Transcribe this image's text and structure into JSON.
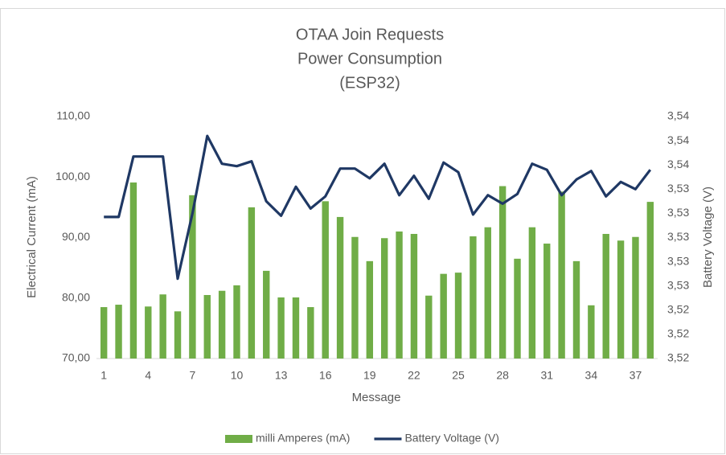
{
  "chart_data": {
    "type": "bar_line",
    "title": [
      "OTAA Join Requests",
      "Power Consumption",
      "(ESP32)"
    ],
    "x_label": "Message",
    "y_label": "Electrical Current (mA)",
    "y2_label": "Battery Voltage (V)",
    "categories": [
      "1",
      null,
      null,
      "4",
      null,
      null,
      "7",
      null,
      null,
      "10",
      null,
      null,
      "13",
      null,
      null,
      "16",
      null,
      null,
      "19",
      null,
      null,
      "22",
      null,
      null,
      "25",
      null,
      null,
      "28",
      null,
      null,
      "31",
      null,
      null,
      "34",
      null,
      null,
      "37",
      null
    ],
    "series": [
      {
        "name": "milli Amperes (mA)",
        "type": "bar",
        "color": "#70ad47",
        "values": [
          78.5,
          78.9,
          99.1,
          78.6,
          80.6,
          77.8,
          97.0,
          80.5,
          81.2,
          82.1,
          95.0,
          84.5,
          80.1,
          80.1,
          78.5,
          96.0,
          93.4,
          90.1,
          86.1,
          89.9,
          91.0,
          90.6,
          80.4,
          84.0,
          84.2,
          90.2,
          91.7,
          98.5,
          86.5,
          91.7,
          89.0,
          97.6,
          86.1,
          78.8,
          90.6,
          89.5,
          90.1,
          95.9
        ]
      },
      {
        "name": "Battery Voltage (V)",
        "type": "line",
        "axis": "y2",
        "color": "#1f3864",
        "values": [
          3.5317,
          3.5317,
          3.5367,
          3.5367,
          3.5367,
          3.5266,
          3.532,
          3.5384,
          3.5361,
          3.5359,
          3.5363,
          3.533,
          3.5318,
          3.5342,
          3.5324,
          3.5334,
          3.5357,
          3.5357,
          3.5349,
          3.5361,
          3.5335,
          3.5351,
          3.5332,
          3.5362,
          3.5354,
          3.5319,
          3.5335,
          3.5328,
          3.5336,
          3.5361,
          3.5356,
          3.5335,
          3.5348,
          3.5355,
          3.5334,
          3.5346,
          3.534,
          3.5356
        ]
      }
    ],
    "ylim": [
      70,
      110
    ],
    "yticks": [
      {
        "value": 70,
        "label": "70,00"
      },
      {
        "value": 80,
        "label": "80,00"
      },
      {
        "value": 90,
        "label": "90,00"
      },
      {
        "value": 100,
        "label": "100,00"
      },
      {
        "value": 110,
        "label": "110,00"
      }
    ],
    "y2lim": [
      3.52,
      3.54
    ],
    "y2ticks": [
      {
        "value": 3.52,
        "label": "3,52"
      },
      {
        "value": 3.522,
        "label": "3,52"
      },
      {
        "value": 3.524,
        "label": "3,52"
      },
      {
        "value": 3.526,
        "label": "3,53"
      },
      {
        "value": 3.528,
        "label": "3,53"
      },
      {
        "value": 3.53,
        "label": "3,53"
      },
      {
        "value": 3.532,
        "label": "3,53"
      },
      {
        "value": 3.534,
        "label": "3,53"
      },
      {
        "value": 3.536,
        "label": "3,54"
      },
      {
        "value": 3.538,
        "label": "3,54"
      },
      {
        "value": 3.54,
        "label": "3,54"
      }
    ],
    "grid": false,
    "legend": "bottom"
  }
}
